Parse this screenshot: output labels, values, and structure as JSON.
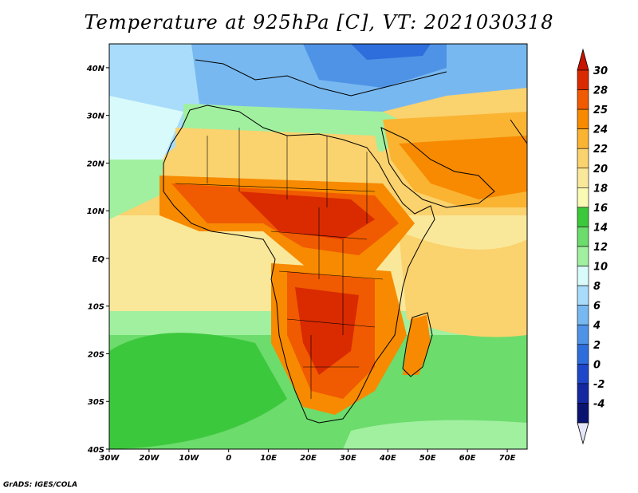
{
  "title": "Temperature at 925hPa [C], VT: 2021030318",
  "credit": "GrADS: IGES/COLA",
  "map": {
    "lon_range": [
      -30,
      75
    ],
    "lat_range": [
      -40,
      45
    ],
    "lon_ticks": [
      {
        "value": -30,
        "label": "30W"
      },
      {
        "value": -20,
        "label": "20W"
      },
      {
        "value": -10,
        "label": "10W"
      },
      {
        "value": 0,
        "label": "0"
      },
      {
        "value": 10,
        "label": "10E"
      },
      {
        "value": 20,
        "label": "20E"
      },
      {
        "value": 30,
        "label": "30E"
      },
      {
        "value": 40,
        "label": "40E"
      },
      {
        "value": 50,
        "label": "50E"
      },
      {
        "value": 60,
        "label": "60E"
      },
      {
        "value": 70,
        "label": "70E"
      }
    ],
    "lat_ticks": [
      {
        "value": 40,
        "label": "40N"
      },
      {
        "value": 30,
        "label": "30N"
      },
      {
        "value": 20,
        "label": "20N"
      },
      {
        "value": 10,
        "label": "10N"
      },
      {
        "value": 0,
        "label": "EQ"
      },
      {
        "value": -10,
        "label": "10S"
      },
      {
        "value": -20,
        "label": "20S"
      },
      {
        "value": -30,
        "label": "30S"
      },
      {
        "value": -40,
        "label": "40S"
      }
    ]
  },
  "colorbar": {
    "levels": [
      "30",
      "28",
      "25",
      "24",
      "22",
      "20",
      "18",
      "16",
      "14",
      "12",
      "10",
      "8",
      "6",
      "4",
      "2",
      "0",
      "-2",
      "-4"
    ],
    "colors": [
      "#d92a00",
      "#f05a00",
      "#f78a00",
      "#fab432",
      "#fad26e",
      "#fae89a",
      "#fafab4",
      "#3cc83c",
      "#6cdc6c",
      "#a0f0a0",
      "#d8fafa",
      "#a8dcfa",
      "#78b8f0",
      "#4f93e6",
      "#2d6edc",
      "#1e46c8",
      "#1428a0",
      "#0a1470"
    ],
    "top_color": "#c81400",
    "bottom_color": "#e6e6fa"
  }
}
